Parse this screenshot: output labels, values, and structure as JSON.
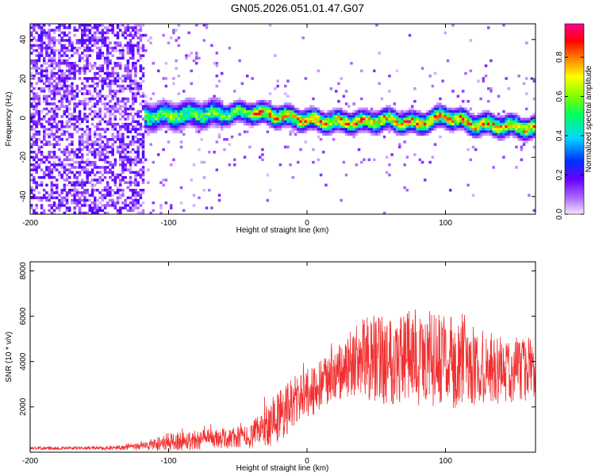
{
  "title": "GN05.2026.051.01.47.G07",
  "chart_data": [
    {
      "type": "heatmap",
      "name": "spectrogram",
      "xlabel": "Height of straight line (km)",
      "ylabel": "Frequency (Hz)",
      "xlim": [
        -200,
        165
      ],
      "ylim": [
        -49,
        48
      ],
      "xticks": [
        -200,
        -100,
        0,
        100
      ],
      "yticks": [
        -40,
        -20,
        0,
        20,
        40
      ],
      "colorbar": {
        "label": "Normalized spectral amplitude",
        "range": [
          0,
          0.97
        ],
        "ticks": [
          0.0,
          0.2,
          0.4,
          0.6,
          0.8
        ],
        "colors": [
          "#f0e0ff",
          "#6a00ff",
          "#0040ff",
          "#00e8ff",
          "#00ff40",
          "#ffff00",
          "#ff8000",
          "#ff0000",
          "#ff0090"
        ]
      },
      "ridge_frequency_hz": {
        "x": [
          -120,
          -100,
          -80,
          -60,
          -40,
          -20,
          0,
          20,
          40,
          60,
          80,
          100,
          120,
          140,
          160
        ],
        "y": [
          1,
          1,
          2,
          2,
          3,
          1,
          -1,
          -2,
          -2,
          -1,
          -3,
          1,
          -3,
          -4,
          -5
        ]
      }
    },
    {
      "type": "line",
      "name": "snr",
      "xlabel": "Height of straight line (km)",
      "ylabel": "SNR (10 * v/v)",
      "xlim": [
        -200,
        165
      ],
      "ylim": [
        0,
        8400
      ],
      "xticks": [
        -200,
        -100,
        0,
        100
      ],
      "yticks": [
        2000,
        4000,
        6000,
        8000
      ],
      "color": "#f03030",
      "envelope": {
        "x": [
          -200,
          -160,
          -140,
          -120,
          -100,
          -80,
          -60,
          -40,
          -30,
          -20,
          -10,
          0,
          10,
          20,
          30,
          40,
          60,
          80,
          100,
          120,
          140,
          165
        ],
        "mean": [
          180,
          180,
          190,
          260,
          450,
          550,
          600,
          700,
          1200,
          1600,
          2200,
          2600,
          2900,
          3300,
          3800,
          4100,
          4200,
          4200,
          4000,
          3800,
          3600,
          3700
        ],
        "spread": [
          80,
          80,
          100,
          200,
          450,
          500,
          500,
          600,
          1100,
          1400,
          1300,
          1200,
          1300,
          1400,
          1600,
          2000,
          2400,
          2400,
          2300,
          2000,
          1700,
          1500
        ]
      }
    }
  ]
}
